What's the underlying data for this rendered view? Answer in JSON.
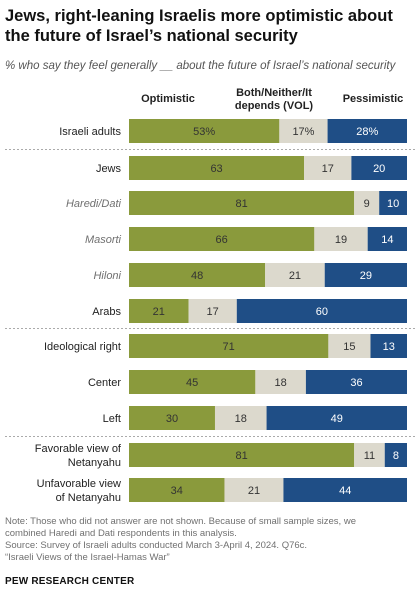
{
  "title": "Jews, right-leaning Israelis more optimistic about the future of Israel’s national security",
  "subtitle": "% who say they feel generally __ about the future of Israel’s national security",
  "headers": {
    "optimistic": "Optimistic",
    "both_line1": "Both/Neither/It",
    "both_line2": "depends (VOL)",
    "pessimistic": "Pessimistic"
  },
  "colors": {
    "optimistic": "#8a9a3c",
    "both": "#dcd9cd",
    "pessimistic": "#1f4e86"
  },
  "chart_data": {
    "type": "bar",
    "orientation": "horizontal-stacked",
    "title": "Jews, right-leaning Israelis more optimistic about the future of Israel’s national security",
    "subtitle": "% who say they feel generally __ about the future of Israel’s national security",
    "categories": [
      {
        "lines": [
          "Israeli adults"
        ],
        "italic": false
      },
      {
        "lines": [
          "Jews"
        ],
        "italic": false
      },
      {
        "lines": [
          "Haredi/Dati"
        ],
        "italic": true
      },
      {
        "lines": [
          "Masorti"
        ],
        "italic": true
      },
      {
        "lines": [
          "Hiloni"
        ],
        "italic": true
      },
      {
        "lines": [
          "Arabs"
        ],
        "italic": false
      },
      {
        "lines": [
          "Ideological right"
        ],
        "italic": false
      },
      {
        "lines": [
          "Center"
        ],
        "italic": false
      },
      {
        "lines": [
          "Left"
        ],
        "italic": false
      },
      {
        "lines": [
          "Favorable view of",
          "Netanyahu"
        ],
        "italic": false
      },
      {
        "lines": [
          "Unfavorable view",
          "of Netanyahu"
        ],
        "italic": false
      }
    ],
    "groups_after": [
      0,
      5,
      8
    ],
    "series": [
      {
        "name": "Optimistic",
        "values": [
          53,
          63,
          81,
          66,
          48,
          21,
          71,
          45,
          30,
          81,
          34
        ],
        "labels": [
          "53%",
          "63",
          "81",
          "66",
          "48",
          "21",
          "71",
          "45",
          "30",
          "81",
          "34"
        ]
      },
      {
        "name": "Both/Neither/It depends (VOL)",
        "values": [
          17,
          17,
          9,
          19,
          21,
          17,
          15,
          18,
          18,
          11,
          21
        ],
        "labels": [
          "17%",
          "17",
          "9",
          "19",
          "21",
          "17",
          "15",
          "18",
          "18",
          "11",
          "21"
        ]
      },
      {
        "name": "Pessimistic",
        "values": [
          28,
          20,
          10,
          14,
          29,
          60,
          13,
          36,
          49,
          8,
          44
        ],
        "labels": [
          "28%",
          "20",
          "10",
          "14",
          "29",
          "60",
          "13",
          "36",
          "49",
          "8",
          "44"
        ]
      }
    ],
    "xlim": [
      0,
      100
    ]
  },
  "notes": {
    "note1": "Note: Those who did not answer are not shown. Because of small sample sizes, we",
    "note2": "combined Haredi and Dati respondents in this analysis.",
    "source": "Source: Survey of Israeli adults conducted March 3-April 4, 2024. Q76c.",
    "report": "“Israeli Views of the Israel-Hamas War”"
  },
  "org": "PEW RESEARCH CENTER"
}
